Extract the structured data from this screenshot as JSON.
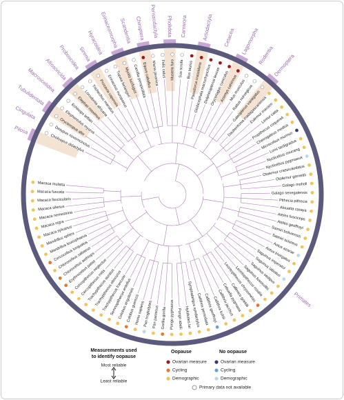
{
  "orders": [
    "Pilosa",
    "Cingulata",
    "Tubulidentata",
    "Macroscelidea",
    "Afrosoricida",
    "Proboscidea",
    "Sirenia",
    "Hyracoidea",
    "Erinaceomorpha",
    "Scandentia",
    "Chiroptera",
    "Perissodactyla",
    "Pholidota",
    "Carnivora",
    "Artiodactyla",
    "Cetacea",
    "Lagomorpha",
    "Rodentia",
    "Dermoptera",
    "Primates"
  ],
  "species": [
    "Choloepus didactylus",
    "Dasypus novemcinctus",
    "Orycteropus afer",
    "Elephantulus myurus",
    "Echinops telfairi",
    "Elephas maximus",
    "Loxodonta africana",
    "Trichechus manatus",
    "Procavia capensis",
    "Erinaceus europaeus",
    "Tupaia belangeri",
    "Myotis lucifugus",
    "Carollia perspicillata",
    "Equus caballus",
    "Manis javanica",
    "Felis catus",
    "Mustela furo",
    "Sus scrofa",
    "Bos taurus",
    "Pseudorca crassidens",
    "Globicephala macrorhynchus",
    "Delphinapterus leucas",
    "Oryctolagus cuniculus",
    "Acomys cahirinus",
    "Mus musculus",
    "Rattus norvegicus",
    "Galeopterus variegatus",
    "Daubentonia madagascariensis",
    "Eulemur macaco",
    "Lemur catta",
    "Propithecus coquereli",
    "Cheirogaleus medius",
    "Microcebus murinus",
    "Loris tardigradus",
    "Nycticebus coucang",
    "Nycticebus pygmaeus",
    "Otolemur crassicaudatus",
    "Otolemur garnettii",
    "Galago moholi",
    "Galago senegalensis",
    "Pithecia pithecia",
    "Alouatta caraya",
    "Ateles fusciceps",
    "Ateles geoffroyi",
    "Saimiri boliviensis",
    "Saimiri sciureus",
    "Aotus azarae",
    "Aotus trivirgatus",
    "Saguinus imperator",
    "Saguinus labiatus",
    "Saguinus oedipus",
    "Saguinus fuscicollis",
    "Leontopithecus rosalia",
    "Leontopithecus chrysomelas",
    "Callimico goeldii",
    "Cebuella pygmaea",
    "Callithrix jacchus",
    "Callithrix kuhlii",
    "Callithrix geoffroyi",
    "Callithrix penicillata",
    "Symphalangus syndactylus",
    "Hylobates lar",
    "Pongo abelii",
    "Pongo pygmaeus",
    "Gorilla gorilla",
    "Pan paniscus",
    "Pan troglodytes",
    "Homo sapiens",
    "Colobus guereza",
    "Colobus angolensis",
    "Semnopithecus entellus",
    "Trachypithecus francoisi",
    "Trachypithecus obscurus",
    "Trachypithecus auratus",
    "Cercopithecus mitis",
    "Cercopithecus neglectus",
    "Erythrocebus patas",
    "Chlorocebus aethiops",
    "Chlorocebus sabaeus",
    "Cercocebus torquatus",
    "Mandrillus leucophaeus",
    "Mandrillus sphinx",
    "Macaca sylvanus",
    "Macaca nigra",
    "Macaca nemestrina",
    "Macaca silenus",
    "Macaca fascicularis",
    "Macaca fuscata",
    "Macaca mulatta"
  ],
  "legend": {
    "title_line1": "Measurements used",
    "title_line2": "to identify oopause",
    "most": "Most reliable",
    "least": "Least reliable",
    "oopause": {
      "title": "Oopause",
      "items": [
        "Ovarian measure",
        "Cycling",
        "Demographic"
      ]
    },
    "no_oopause": {
      "title": "No oopause",
      "items": [
        "Ovarian measure",
        "Cycling",
        "Demographic"
      ]
    },
    "na": "Primary data not available"
  }
}
